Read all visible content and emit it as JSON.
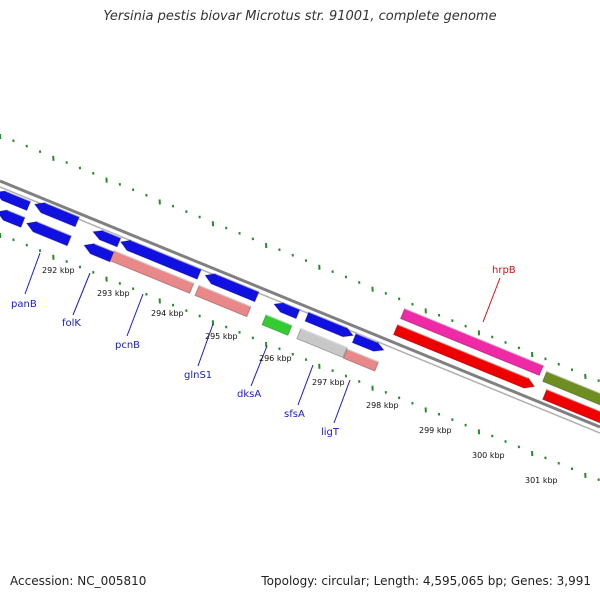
{
  "title": "Yersinia pestis biovar Microtus str. 91001, complete genome",
  "footer": {
    "accession": "Accession: NC_005810",
    "summary": "Topology: circular; Length: 4,595,065 bp; Genes: 3,991"
  },
  "colors": {
    "blue": "#1010e0",
    "salmon": "#e88888",
    "green": "#33cc33",
    "grey": "#c8c8c8",
    "magenta": "#ee2aa6",
    "red": "#ee0000",
    "olive": "#6e8e22",
    "tick": "#2a8a2a",
    "backbone": "#808080",
    "label_blue": "#1a1acc",
    "label_red": "#cc1111"
  },
  "scale": {
    "unit": "kbp",
    "labels": [
      "292 kbp",
      "293 kbp",
      "294 kbp",
      "295 kbp",
      "296 kbp",
      "297 kbp",
      "298 kbp",
      "299 kbp",
      "300 kbp",
      "301 kbp"
    ]
  },
  "gene_labels": [
    "panB",
    "folK",
    "pcnB",
    "glnS1",
    "dksA",
    "sfsA",
    "ligT",
    "hrpB"
  ]
}
